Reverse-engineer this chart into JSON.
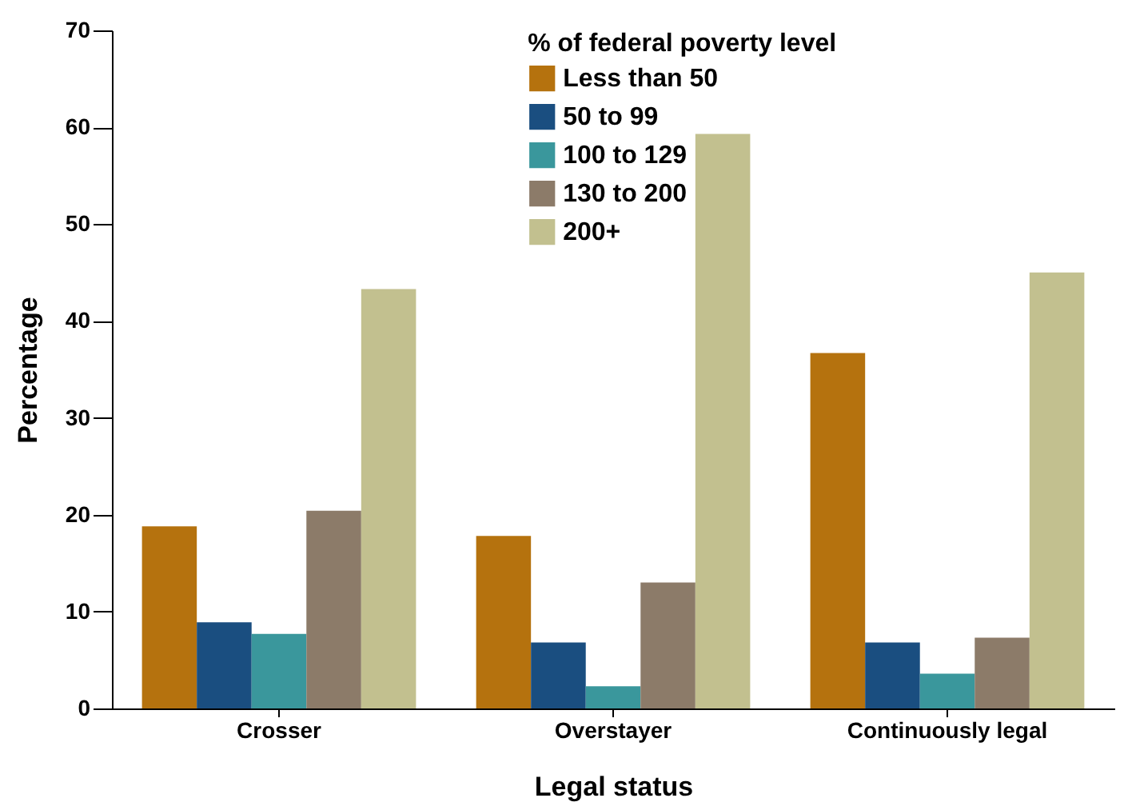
{
  "chart_data": {
    "type": "bar",
    "xlabel": "Legal status",
    "ylabel": "Percentage",
    "legend_title": "% of federal poverty level",
    "legend": "top",
    "grid": false,
    "categories": [
      "Crosser",
      "Overstayer",
      "Continuously legal"
    ],
    "ylim": [
      0,
      70
    ],
    "yticks": [
      0,
      10,
      20,
      30,
      40,
      50,
      60,
      70
    ],
    "series": [
      {
        "name": "Less than 50",
        "color": "#b5720e",
        "values": [
          18.8,
          17.8,
          36.7
        ]
      },
      {
        "name": "50 to 99",
        "color": "#1a4e80",
        "values": [
          8.9,
          6.8,
          6.8
        ]
      },
      {
        "name": "100 to 129",
        "color": "#3a979c",
        "values": [
          7.7,
          2.3,
          3.6
        ]
      },
      {
        "name": "130 to 200",
        "color": "#8c7b69",
        "values": [
          20.4,
          13.0,
          7.3
        ]
      },
      {
        "name": "200+",
        "color": "#c2c08f",
        "values": [
          43.3,
          59.3,
          45.0
        ]
      }
    ]
  }
}
